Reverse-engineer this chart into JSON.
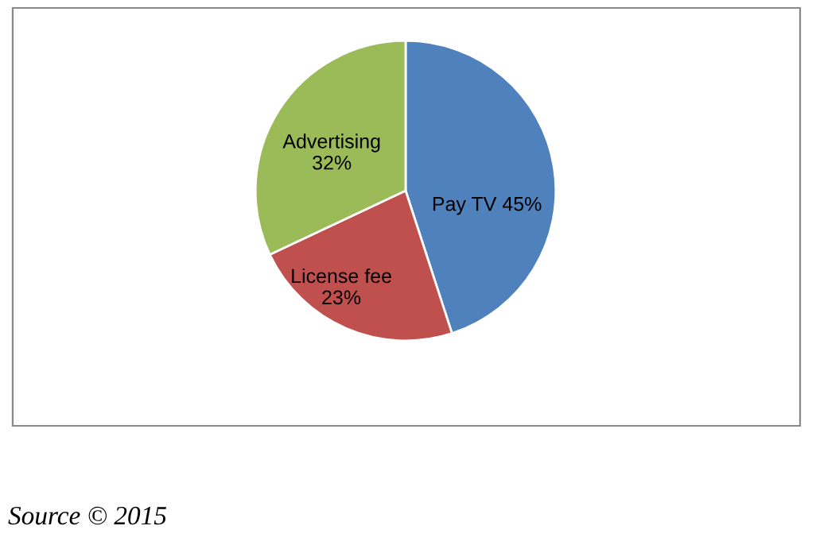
{
  "chart_data": {
    "type": "pie",
    "categories": [
      "Pay TV",
      "License fee",
      "Advertising"
    ],
    "values": [
      45,
      23,
      32
    ],
    "colors": [
      "#4f81bd",
      "#c0504d",
      "#9bbb59"
    ],
    "value_labels": [
      "45%",
      "23%",
      "32%"
    ],
    "annotations": [
      "Source © 2015"
    ]
  }
}
